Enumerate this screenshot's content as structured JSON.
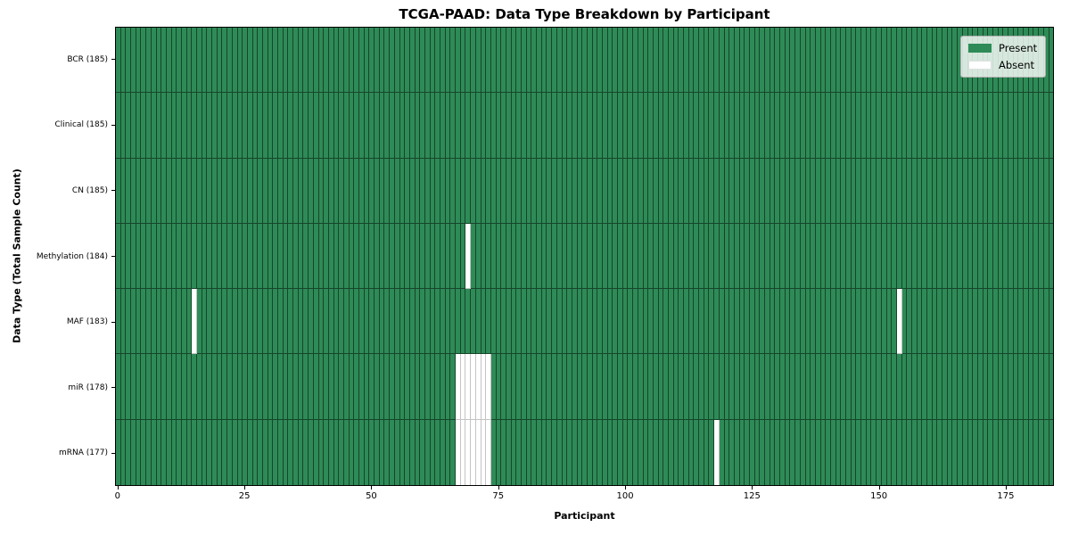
{
  "chart_data": {
    "type": "heatmap",
    "title": "TCGA-PAAD: Data Type Breakdown by Participant",
    "xlabel": "Participant",
    "ylabel": "Data Type (Total Sample Count)",
    "n_participants": 185,
    "xlim": [
      -0.5,
      184.5
    ],
    "x_ticks": [
      0,
      25,
      50,
      75,
      100,
      125,
      150,
      175
    ],
    "grid": false,
    "legend_position": "upper right",
    "legend": [
      {
        "label": "Present",
        "key": "present"
      },
      {
        "label": "Absent",
        "key": "absent"
      }
    ],
    "rows": [
      {
        "name": "BCR",
        "total": 185,
        "label": "BCR (185)",
        "absent_participants": []
      },
      {
        "name": "Clinical",
        "total": 185,
        "label": "Clinical (185)",
        "absent_participants": []
      },
      {
        "name": "CN",
        "total": 185,
        "label": "CN (185)",
        "absent_participants": []
      },
      {
        "name": "Methylation",
        "total": 184,
        "label": "Methylation (184)",
        "absent_participants": [
          69
        ]
      },
      {
        "name": "MAF",
        "total": 183,
        "label": "MAF (183)",
        "absent_participants": [
          15,
          154
        ]
      },
      {
        "name": "miR",
        "total": 178,
        "label": "miR (178)",
        "absent_participants": [
          67,
          68,
          69,
          70,
          71,
          72,
          73
        ]
      },
      {
        "name": "mRNA",
        "total": 177,
        "label": "mRNA (177)",
        "absent_participants": [
          67,
          68,
          69,
          70,
          71,
          72,
          73,
          118
        ]
      }
    ],
    "colors": {
      "present": "#2e8b57",
      "absent": "#ffffff",
      "present_edge": "#17452a",
      "absent_edge": "#c4c4c4",
      "frame": "#000000"
    }
  },
  "layout_note": "presence/absence matrix, 7 data types x 185 participants"
}
